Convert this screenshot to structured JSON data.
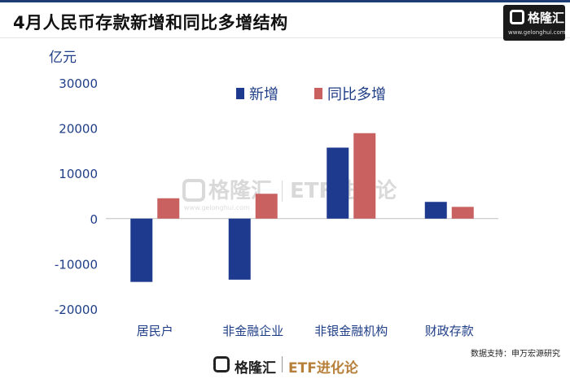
{
  "header": {
    "title": "4月人民币存款新增和同比多增结构",
    "logo_name": "格隆汇",
    "logo_url": "www.gelonghui.com"
  },
  "footer": {
    "brand_name": "格隆汇",
    "brand_etf": "ETF进化论",
    "source": "数据支持：申万宏源研究"
  },
  "watermark": {
    "name": "格隆汇",
    "url": "www.gelonghui.com",
    "etf": "ETF进化论"
  },
  "colors": {
    "new_increase": "#1e3a8e",
    "yoy_increase": "#c96161",
    "axis_text": "#1f3e87"
  },
  "chart_data": {
    "type": "bar",
    "title": "4月人民币存款新增和同比多增结构",
    "ylabel": "亿元",
    "xlabel": "",
    "ylim": [
      -20000,
      30000
    ],
    "yticks": [
      30000,
      20000,
      10000,
      0,
      -10000,
      -20000
    ],
    "grid": false,
    "legend_position": "top-center",
    "categories": [
      "居民户",
      "非金融企业",
      "非银金融机构",
      "财政存款"
    ],
    "series": [
      {
        "name": "新增",
        "values": [
          -14000,
          -13500,
          15700,
          3700
        ]
      },
      {
        "name": "同比多增",
        "values": [
          4500,
          5500,
          18900,
          2600
        ]
      }
    ]
  }
}
